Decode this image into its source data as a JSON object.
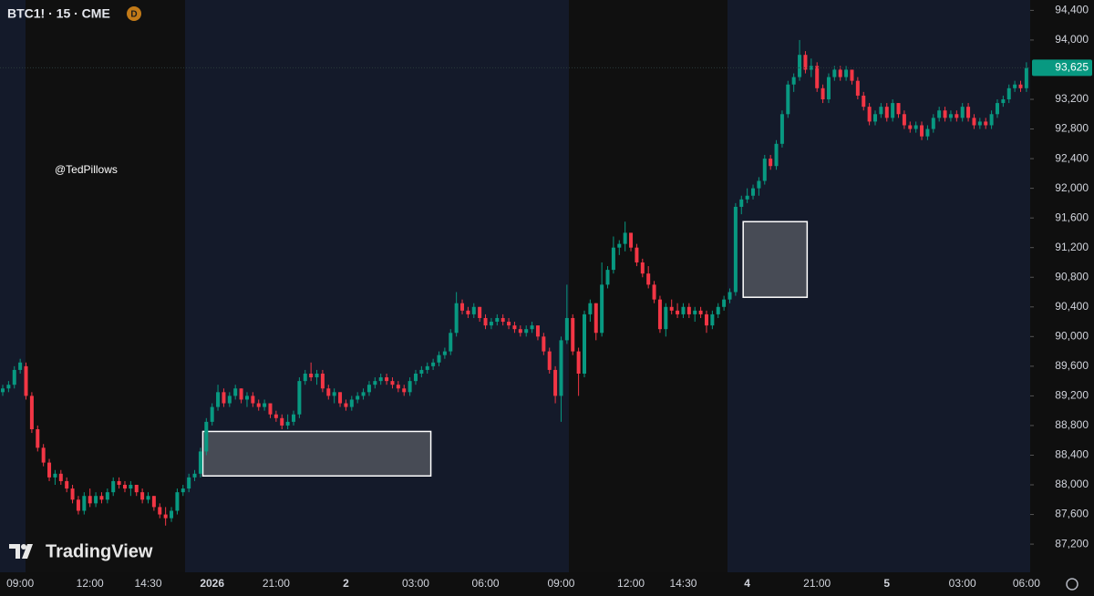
{
  "chart_data": {
    "type": "candlestick",
    "title": "BTC1! · 15 · CME",
    "badge": "D",
    "watermark": "@TedPillows",
    "brand": "TradingView",
    "up_color": "#089981",
    "down_color": "#f23645",
    "categories": [
      null,
      null,
      null,
      "09:00",
      null,
      null,
      null,
      null,
      null,
      null,
      null,
      null,
      null,
      null,
      null,
      "12:00",
      null,
      null,
      null,
      null,
      null,
      null,
      null,
      null,
      null,
      "14:30",
      null,
      null,
      null,
      null,
      null,
      null,
      null,
      null,
      null,
      null,
      "2026",
      null,
      null,
      null,
      null,
      null,
      null,
      null,
      null,
      null,
      null,
      "21:00",
      null,
      null,
      null,
      null,
      null,
      null,
      null,
      null,
      null,
      null,
      null,
      "2",
      null,
      null,
      null,
      null,
      null,
      null,
      null,
      null,
      null,
      null,
      null,
      "03:00",
      null,
      null,
      null,
      null,
      null,
      null,
      null,
      null,
      null,
      null,
      null,
      "06:00",
      null,
      null,
      null,
      null,
      null,
      null,
      null,
      null,
      null,
      null,
      null,
      null,
      "09:00",
      null,
      null,
      null,
      null,
      null,
      null,
      null,
      null,
      null,
      null,
      null,
      "12:00",
      null,
      null,
      null,
      null,
      null,
      null,
      null,
      null,
      "14:30",
      null,
      null,
      null,
      null,
      null,
      null,
      null,
      null,
      null,
      null,
      "4",
      null,
      null,
      null,
      null,
      null,
      null,
      null,
      null,
      null,
      null,
      null,
      "21:00",
      null,
      null,
      null,
      null,
      null,
      null,
      null,
      null,
      null,
      null,
      null,
      "5",
      null,
      null,
      null,
      null,
      null,
      null,
      null,
      null,
      null,
      null,
      null,
      null,
      "03:00",
      null,
      null,
      null,
      null,
      null,
      null,
      null,
      null,
      null,
      null,
      "06:00"
    ],
    "open": [
      89250,
      89300,
      89350,
      89550,
      89600,
      89200,
      88750,
      88500,
      88300,
      88100,
      88150,
      88050,
      87950,
      87800,
      87650,
      87850,
      87750,
      87850,
      87800,
      87900,
      88050,
      88000,
      87950,
      88000,
      87900,
      87800,
      87850,
      87700,
      87600,
      87550,
      87650,
      87900,
      87950,
      88100,
      88150,
      88450,
      88850,
      89050,
      89250,
      89100,
      89200,
      89300,
      89150,
      89200,
      89100,
      89050,
      89100,
      88950,
      88900,
      88800,
      88850,
      88950,
      89400,
      89500,
      89450,
      89500,
      89300,
      89200,
      89250,
      89100,
      89050,
      89150,
      89200,
      89250,
      89350,
      89400,
      89450,
      89400,
      89350,
      89300,
      89250,
      89400,
      89500,
      89550,
      89600,
      89650,
      89750,
      89800,
      90050,
      90450,
      90350,
      90300,
      90400,
      90250,
      90150,
      90200,
      90250,
      90200,
      90150,
      90100,
      90050,
      90100,
      90150,
      90000,
      89800,
      89550,
      89200,
      89950,
      90250,
      89800,
      89500,
      90300,
      90450,
      90050,
      90700,
      90900,
      91200,
      91250,
      91400,
      91200,
      91000,
      90850,
      90700,
      90500,
      90100,
      90400,
      90350,
      90300,
      90400,
      90300,
      90350,
      90300,
      90150,
      90300,
      90400,
      90500,
      90600,
      91750,
      91850,
      91900,
      92000,
      92100,
      92400,
      92300,
      92600,
      93000,
      93400,
      93500,
      93800,
      93600,
      93650,
      93350,
      93200,
      93500,
      93600,
      93500,
      93600,
      93450,
      93250,
      93100,
      92900,
      93000,
      93100,
      92950,
      93150,
      93000,
      92850,
      92800,
      92850,
      92700,
      92800,
      92950,
      93050,
      92950,
      93000,
      92950,
      93100,
      92950,
      92850,
      92900,
      92850,
      93000,
      93150,
      93200,
      93350,
      93400,
      93350
    ],
    "high": [
      89350,
      89400,
      89600,
      89700,
      89650,
      89250,
      88800,
      88550,
      88350,
      88200,
      88200,
      88100,
      88000,
      87850,
      87900,
      87950,
      87900,
      87900,
      87950,
      88100,
      88100,
      88050,
      88050,
      88000,
      87950,
      87900,
      87850,
      87750,
      87700,
      87700,
      87950,
      88000,
      88150,
      88200,
      88500,
      88900,
      89100,
      89350,
      89300,
      89250,
      89350,
      89300,
      89250,
      89250,
      89150,
      89150,
      89100,
      89000,
      88950,
      88950,
      89000,
      89450,
      89550,
      89650,
      89550,
      89550,
      89350,
      89300,
      89250,
      89150,
      89200,
      89250,
      89300,
      89400,
      89450,
      89500,
      89500,
      89450,
      89400,
      89350,
      89450,
      89550,
      89600,
      89650,
      89700,
      89800,
      89850,
      90100,
      90600,
      90500,
      90400,
      90450,
      90400,
      90300,
      90250,
      90300,
      90300,
      90250,
      90200,
      90150,
      90150,
      90200,
      90150,
      90050,
      89850,
      89600,
      90000,
      90700,
      90300,
      89850,
      90350,
      90500,
      90450,
      91000,
      90950,
      91350,
      91300,
      91550,
      91400,
      91250,
      91050,
      90950,
      90750,
      90550,
      90450,
      90500,
      90450,
      90450,
      90450,
      90400,
      90400,
      90350,
      90350,
      90450,
      90550,
      90650,
      91800,
      91900,
      92000,
      92050,
      92150,
      92450,
      92450,
      92650,
      93050,
      93450,
      93550,
      94000,
      93850,
      93750,
      93700,
      93400,
      93550,
      93650,
      93650,
      93650,
      93600,
      93500,
      93300,
      93150,
      93050,
      93150,
      93150,
      93200,
      93150,
      93050,
      92900,
      92900,
      92900,
      92850,
      93000,
      93100,
      93100,
      93050,
      93050,
      93150,
      93150,
      93000,
      92950,
      92950,
      93050,
      93200,
      93250,
      93400,
      93450,
      93450,
      93700
    ],
    "low": [
      89200,
      89250,
      89300,
      89500,
      89150,
      88700,
      88450,
      88250,
      88050,
      88000,
      88000,
      87900,
      87750,
      87600,
      87600,
      87700,
      87700,
      87750,
      87750,
      87850,
      87950,
      87900,
      87850,
      87850,
      87750,
      87750,
      87650,
      87550,
      87450,
      87500,
      87600,
      87850,
      87900,
      88050,
      88100,
      88400,
      88800,
      89000,
      89050,
      89050,
      89150,
      89100,
      89050,
      89050,
      89000,
      89000,
      88900,
      88850,
      88750,
      88750,
      88800,
      88900,
      89350,
      89400,
      89350,
      89250,
      89150,
      89100,
      89050,
      89000,
      89000,
      89100,
      89150,
      89200,
      89300,
      89350,
      89350,
      89300,
      89250,
      89200,
      89200,
      89350,
      89450,
      89500,
      89550,
      89600,
      89700,
      89750,
      90000,
      90300,
      90250,
      90250,
      90200,
      90100,
      90100,
      90150,
      90150,
      90100,
      90050,
      90000,
      90000,
      90050,
      89950,
      89750,
      89500,
      89100,
      88850,
      89900,
      89750,
      89200,
      89450,
      90200,
      89950,
      90000,
      90650,
      90850,
      91100,
      91150,
      91150,
      90950,
      90800,
      90650,
      90450,
      90050,
      90000,
      90300,
      90250,
      90250,
      90250,
      90200,
      90250,
      90050,
      90100,
      90250,
      90350,
      90450,
      90550,
      91650,
      91800,
      91850,
      91900,
      92050,
      92250,
      92250,
      92550,
      92950,
      93300,
      93450,
      93550,
      93500,
      93300,
      93150,
      93150,
      93450,
      93450,
      93450,
      93400,
      93200,
      93050,
      92850,
      92850,
      92950,
      92900,
      92900,
      92950,
      92800,
      92750,
      92750,
      92650,
      92650,
      92750,
      92900,
      92900,
      92900,
      92900,
      92900,
      92900,
      92800,
      92800,
      92800,
      92800,
      92950,
      93100,
      93150,
      93300,
      93300,
      93300
    ],
    "close": [
      89300,
      89350,
      89550,
      89650,
      89200,
      88750,
      88500,
      88300,
      88100,
      88150,
      88050,
      87950,
      87800,
      87650,
      87850,
      87750,
      87850,
      87800,
      87900,
      88050,
      88000,
      87950,
      88000,
      87900,
      87800,
      87850,
      87700,
      87600,
      87550,
      87650,
      87900,
      87950,
      88100,
      88150,
      88450,
      88850,
      89050,
      89250,
      89100,
      89200,
      89300,
      89150,
      89200,
      89100,
      89050,
      89100,
      88950,
      88900,
      88800,
      88850,
      88950,
      89400,
      89500,
      89450,
      89500,
      89300,
      89200,
      89250,
      89100,
      89050,
      89150,
      89200,
      89250,
      89350,
      89400,
      89450,
      89400,
      89350,
      89300,
      89250,
      89400,
      89500,
      89550,
      89600,
      89650,
      89750,
      89800,
      90050,
      90450,
      90350,
      90300,
      90400,
      90250,
      90150,
      90200,
      90250,
      90200,
      90150,
      90100,
      90050,
      90100,
      90150,
      90000,
      89800,
      89550,
      89200,
      89950,
      90250,
      89800,
      89500,
      90300,
      90450,
      90050,
      90700,
      90900,
      91200,
      91250,
      91400,
      91200,
      91000,
      90850,
      90700,
      90500,
      90100,
      90400,
      90350,
      90300,
      90400,
      90300,
      90350,
      90300,
      90150,
      90300,
      90400,
      90500,
      90600,
      91750,
      91850,
      91900,
      92000,
      92100,
      92400,
      92300,
      92600,
      93000,
      93400,
      93500,
      93800,
      93600,
      93650,
      93350,
      93200,
      93500,
      93600,
      93500,
      93600,
      93450,
      93250,
      93100,
      92900,
      93000,
      93100,
      92950,
      93150,
      93000,
      92850,
      92800,
      92850,
      92700,
      92800,
      92950,
      93050,
      92950,
      93000,
      92950,
      93100,
      92950,
      92850,
      92900,
      92850,
      93000,
      93150,
      93200,
      93350,
      93400,
      93350,
      93625
    ],
    "zones": [
      {
        "start": 34.4,
        "end": 73.6,
        "top": 88720,
        "bottom": 88120
      },
      {
        "start": 127.3,
        "end": 138.3,
        "top": 91550,
        "bottom": 90530
      }
    ],
    "last_price": {
      "value": 93625,
      "label": "93,625"
    },
    "ylim": [
      86820,
      94540
    ],
    "yticks": [
      {
        "value": 87200,
        "label": "87,200"
      },
      {
        "value": 87600,
        "label": "87,600"
      },
      {
        "value": 88000,
        "label": "88,000"
      },
      {
        "value": 88400,
        "label": "88,400"
      },
      {
        "value": 88800,
        "label": "88,800"
      },
      {
        "value": 89200,
        "label": "89,200"
      },
      {
        "value": 89600,
        "label": "89,600"
      },
      {
        "value": 90000,
        "label": "90,000"
      },
      {
        "value": 90400,
        "label": "90,400"
      },
      {
        "value": 90800,
        "label": "90,800"
      },
      {
        "value": 91200,
        "label": "91,200"
      },
      {
        "value": 91600,
        "label": "91,600"
      },
      {
        "value": 92000,
        "label": "92,000"
      },
      {
        "value": 92400,
        "label": "92,400"
      },
      {
        "value": 92800,
        "label": "92,800"
      },
      {
        "value": 93200,
        "label": "93,200"
      },
      {
        "value": 94000,
        "label": "94,000"
      },
      {
        "value": 94400,
        "label": "94,400"
      }
    ]
  }
}
